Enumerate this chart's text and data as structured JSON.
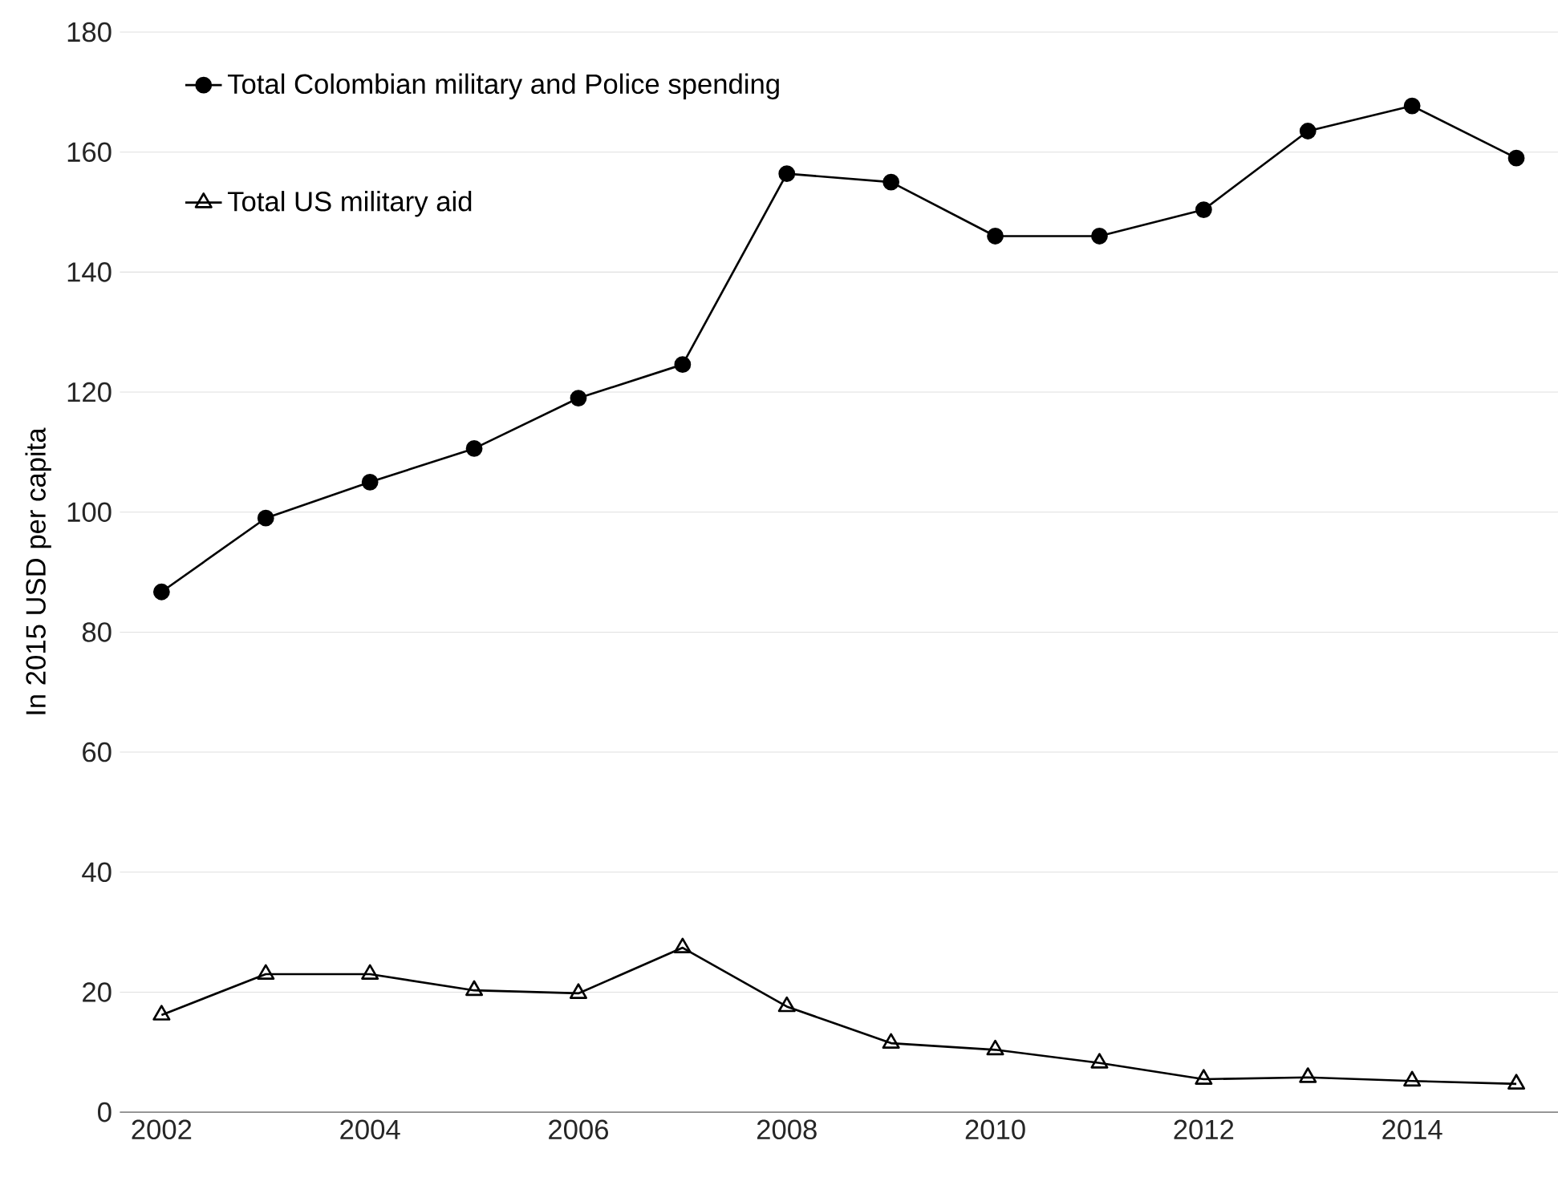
{
  "chart_data": {
    "type": "line",
    "ylabel": "In  2015 USD per capita",
    "x": [
      2002,
      2003,
      2004,
      2005,
      2006,
      2007,
      2008,
      2009,
      2010,
      2011,
      2012,
      2013,
      2014,
      2015
    ],
    "series": [
      {
        "name": "Total Colombian military and Police spending",
        "color": "#000000",
        "marker": "circle",
        "values": [
          86.7,
          99,
          105,
          110.6,
          119,
          124.6,
          156.4,
          155,
          146,
          146,
          150.4,
          163.5,
          167.7,
          159
        ]
      },
      {
        "name": "Total US military aid",
        "color": "#000000",
        "marker": "triangle",
        "values": [
          16.2,
          23,
          23,
          20.3,
          19.8,
          27.4,
          17.6,
          11.5,
          10.4,
          8.2,
          5.5,
          5.8,
          5.2,
          4.7
        ]
      }
    ],
    "xlim": [
      2001.6,
      2015.4
    ],
    "xticks": [
      2002,
      2004,
      2006,
      2008,
      2010,
      2012,
      2014
    ],
    "ylim": [
      0,
      180
    ],
    "yticks": [
      0,
      20,
      40,
      60,
      80,
      100,
      120,
      140,
      160,
      180
    ],
    "grid": "y",
    "legend": "top left",
    "line_style": "solid"
  }
}
